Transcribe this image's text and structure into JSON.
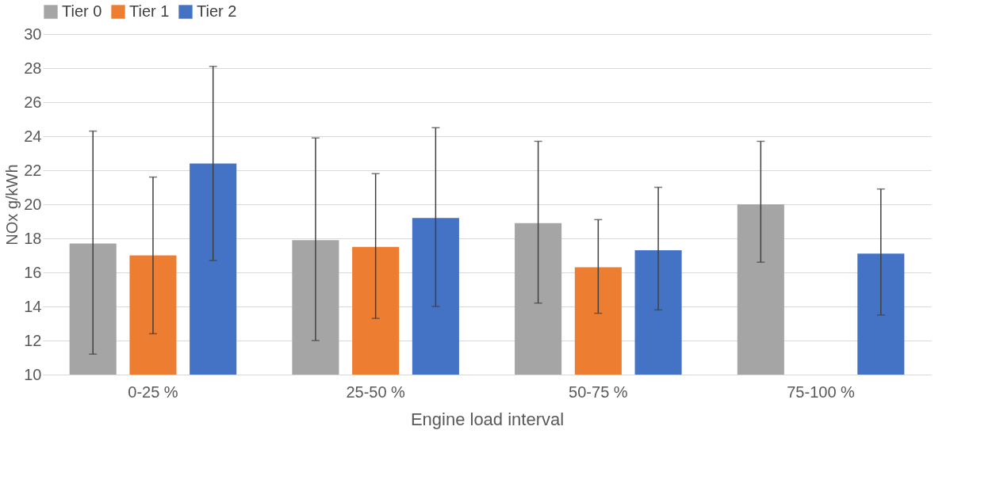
{
  "chart_data": {
    "type": "bar",
    "xlabel": "Engine load interval",
    "ylabel": "NOx g/kWh",
    "categories": [
      "0-25 %",
      "25-50 %",
      "50-75 %",
      "75-100 %"
    ],
    "series": [
      {
        "name": "Tier 0",
        "color": "#a5a5a5",
        "values": [
          17.7,
          17.9,
          18.9,
          20.0
        ],
        "errors": [
          [
            11.2,
            24.3
          ],
          [
            12.0,
            23.9
          ],
          [
            14.2,
            23.7
          ],
          [
            16.6,
            23.7
          ]
        ]
      },
      {
        "name": "Tier 1",
        "color": "#ed7d31",
        "values": [
          17.0,
          17.5,
          16.3,
          null
        ],
        "errors": [
          [
            12.4,
            21.6
          ],
          [
            13.3,
            21.8
          ],
          [
            13.6,
            19.1
          ],
          null
        ]
      },
      {
        "name": "Tier 2",
        "color": "#4472c4",
        "values": [
          22.4,
          19.2,
          17.3,
          17.1
        ],
        "errors": [
          [
            16.7,
            28.1
          ],
          [
            14.0,
            24.5
          ],
          [
            13.8,
            21.0
          ],
          [
            13.5,
            20.9
          ]
        ]
      }
    ],
    "ylim": [
      10,
      30
    ],
    "yticks": [
      10,
      12,
      14,
      16,
      18,
      20,
      22,
      24,
      26,
      28,
      30
    ],
    "grid": "y",
    "legend": "top"
  }
}
